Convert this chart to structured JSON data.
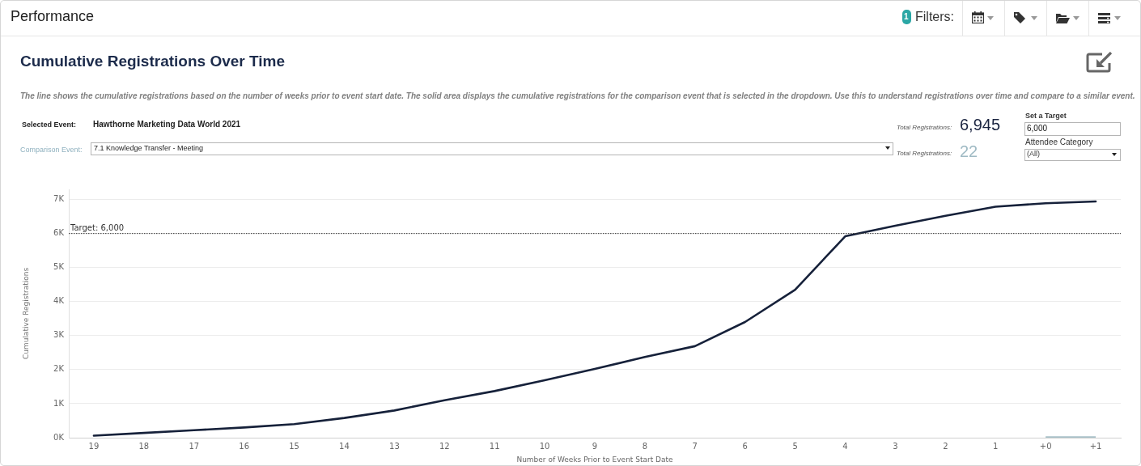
{
  "chart_data": {
    "type": "line",
    "title": "Cumulative Registrations Over Time",
    "subtitle": "The line shows the cumulative registrations based on the number of weeks prior to event start date. The solid area displays the cumulative registrations for the comparison event that is selected in the dropdown. Use this to understand registrations over time and compare to a similar event.",
    "xlabel": "Number of Weeks Prior to Event Start Date",
    "ylabel": "Cumulative Registrations",
    "categories": [
      "19",
      "18",
      "17",
      "16",
      "15",
      "14",
      "13",
      "12",
      "11",
      "10",
      "9",
      "8",
      "7",
      "6",
      "5",
      "4",
      "3",
      "2",
      "1",
      "+0",
      "+1"
    ],
    "series": [
      {
        "color": "#16213a",
        "values": [
          60,
          140,
          220,
          300,
          400,
          580,
          800,
          1100,
          1370,
          1690,
          2020,
          2370,
          2690,
          3400,
          4350,
          5920,
          6230,
          6520,
          6790,
          6890,
          6945
        ]
      },
      {
        "type": "area",
        "color": "#a9c1c8",
        "values": [
          null,
          null,
          null,
          null,
          null,
          null,
          null,
          null,
          null,
          null,
          null,
          null,
          null,
          null,
          null,
          null,
          null,
          null,
          null,
          22,
          22
        ]
      }
    ],
    "ylim": [
      0,
      7300
    ],
    "yticks": [
      {
        "value": 0,
        "label": "0K"
      },
      {
        "value": 1000,
        "label": "1K"
      },
      {
        "value": 2000,
        "label": "2K"
      },
      {
        "value": 3000,
        "label": "3K"
      },
      {
        "value": 4000,
        "label": "4K"
      },
      {
        "value": 5000,
        "label": "5K"
      },
      {
        "value": 6000,
        "label": "6K"
      },
      {
        "value": 7000,
        "label": "7K"
      }
    ],
    "grid": "y",
    "marker": "none",
    "line_style": "solid",
    "ref_lines": [
      {
        "axis": "y",
        "value": 6000,
        "label": "Target: 6,000",
        "color": "#333333",
        "line_style": "dotted"
      }
    ],
    "annotations": [
      "Performance",
      "1",
      "Filters:",
      "Selected Event:",
      "Hawthorne Marketing Data World 2021",
      "Comparison Event:",
      "7.1 Knowledge Transfer - Meeting",
      "Total Registrations:",
      "6,945",
      "Total Registrations:",
      "22",
      "Set a Target",
      "6,000",
      "Attendee Category",
      "(All)"
    ]
  }
}
